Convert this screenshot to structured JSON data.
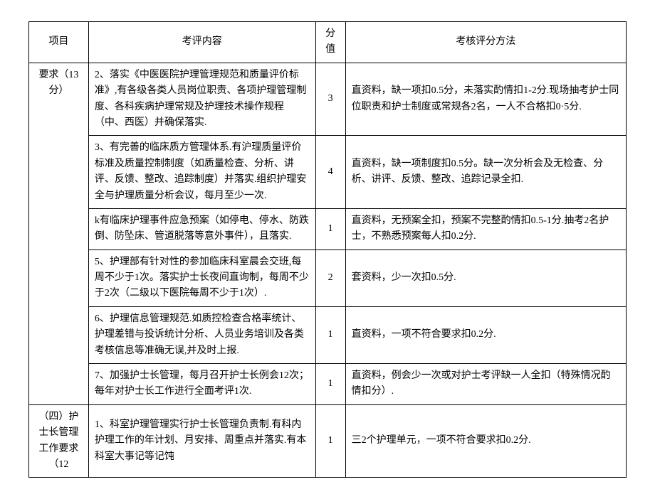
{
  "headers": {
    "item": "项目",
    "content": "考评内容",
    "score": "分值",
    "method": "考核评分方法"
  },
  "rows": [
    {
      "item": "要求（13分）",
      "content": "2、落实《中医医院护理管理规范和质量评价标准》,有各级各类人员岗位职责、各项护理管理制度、各科疾病护理常规及护理技术操作规程（中、西医）并确保落实.",
      "score": "3",
      "method": "直资料，缺一项扣0.5分，未落实酌情扣1-2分.现场抽考护士同位职责和护士制度或常规各2名，一人不合格扣0·5分."
    },
    {
      "item": "",
      "content": "3、有完善的临床质方管理体系.有沪理质量评价标准及质量控制制度（如质量检查、分析、讲评、反馈、整改、追踪制度）并落实.组织护理安全与护理质量分析会议，每月至少一次.",
      "score": "4",
      "method": "直资料，缺一项制度扣0.5分。缺一次分析会及无检查、分析、讲评、反馈、整改、追踪记录全扣."
    },
    {
      "item": "",
      "content": "k有临床护理事件应急预案（如停电、停水、防跌倒、防坠床、管道脱落等意外事件），且落实.",
      "score": "1",
      "method": "直资料，无预案全扣，预案不完整酌情扣0.5-1分.抽考2名护士，不熟悉预案每人扣0.2分."
    },
    {
      "item": "",
      "content": "5、护理部有针对性的参加临床科室晨会交班,每周不少于1次。落实护士长夜间直询制，每周不少于2次（二级以下医院每周不少于1次）.",
      "score": "2",
      "method": "套资料，少一次扣0.5分."
    },
    {
      "item": "",
      "content": "6、护理信息管理规范.如质控检查合格率统计、护理差错与投诉统计分析、人员业务培训及各类考核信息等准确无误,并及时上报.",
      "score": "1",
      "method": "直资料，一项不符合要求扣0.2分."
    },
    {
      "item": "",
      "content": "7、加强护士长管理，每月召开护士长例会12次；每年对护士长工作进行全面考评1次.",
      "score": "1",
      "method": "直资料，例会少一次或对护士考评缺一人全扣（特殊情况酌情扣分）."
    },
    {
      "item": "（四）护士长管理工作要求（12",
      "content": "1、科室护理管理实行护士长管理负责制.有科内护理工作的年计划、月安排、周重点并落实.有本科室大事记等记饨",
      "score": "1",
      "method": "三2个护理单元，一项不符合要求扣0.2分."
    }
  ]
}
